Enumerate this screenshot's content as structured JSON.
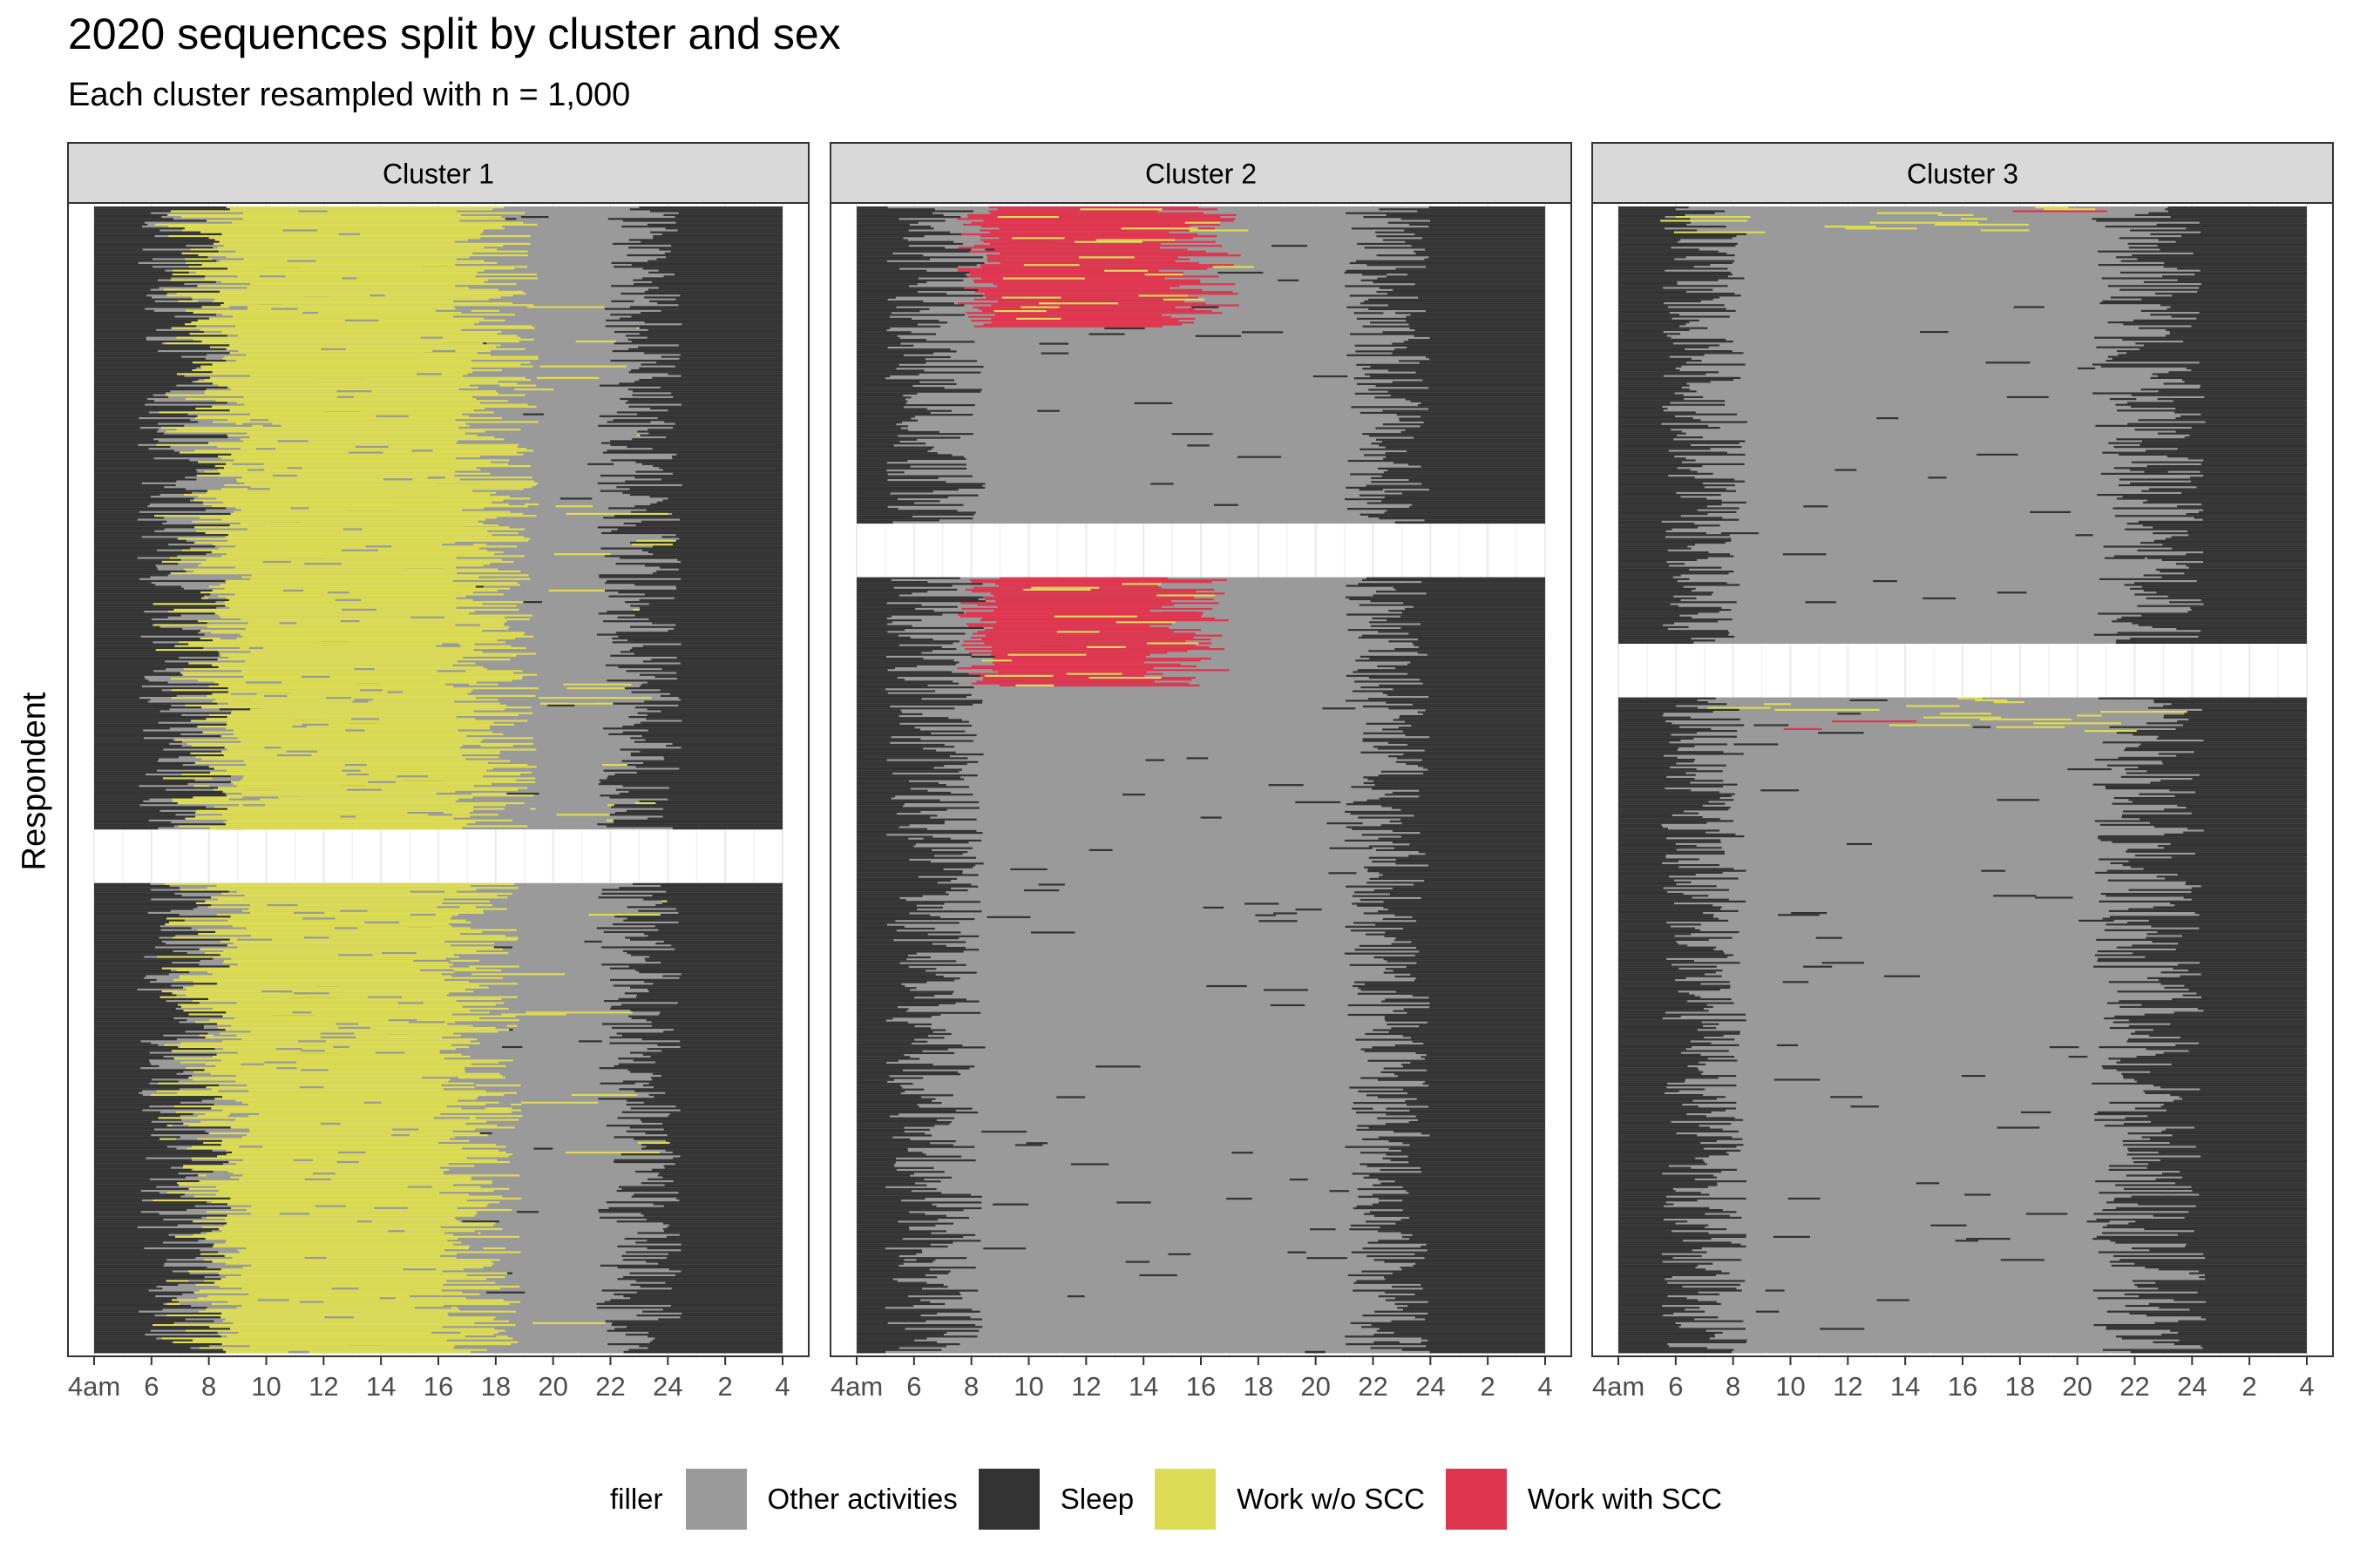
{
  "title": "2020 sequences split by cluster and sex",
  "subtitle": "Each cluster resampled with n = 1,000",
  "ylabel": "Respondent",
  "colors": {
    "other": "#9a9a9a",
    "sleep": "#333333",
    "work_wo_scc": "#dcdc55",
    "work_with_scc": "#e0354f",
    "strip_bg": "#d9d9d9",
    "grid": "#ebebeb",
    "panel_border": "#333333"
  },
  "legend": {
    "title": "filler",
    "items": [
      {
        "key": "other",
        "label": "Other activities"
      },
      {
        "key": "sleep",
        "label": "Sleep"
      },
      {
        "key": "work_wo_scc",
        "label": "Work w/o SCC"
      },
      {
        "key": "work_with_scc",
        "label": "Work with SCC"
      }
    ]
  },
  "chart_data": {
    "type": "sequence_index_plot",
    "x_ticks": [
      "4am",
      "6",
      "8",
      "10",
      "12",
      "14",
      "16",
      "18",
      "20",
      "22",
      "24",
      "2",
      "4"
    ],
    "x_range_hours": [
      4,
      28
    ],
    "panels": [
      {
        "label": "Cluster 1",
        "groups": [
          {
            "share": 0.57,
            "sleep_end": [
              5.5,
              8.8
            ],
            "sleep_start": [
              21.5,
              24.5
            ],
            "work_start": [
              5.8,
              9.5
            ],
            "work_end": [
              16.5,
              19.5
            ],
            "work_color": "work_wo_scc",
            "evening_work_share": 0.06,
            "scc_top_share": 0.0
          },
          {
            "share": 0.43,
            "sleep_end": [
              5.5,
              8.8
            ],
            "sleep_start": [
              21.5,
              24.5
            ],
            "work_start": [
              5.8,
              9.5
            ],
            "work_end": [
              16.0,
              19.0
            ],
            "work_color": "work_wo_scc",
            "evening_work_share": 0.05,
            "scc_top_share": 0.0
          }
        ]
      },
      {
        "label": "Cluster 2",
        "groups": [
          {
            "share": 0.29,
            "sleep_end": [
              5.0,
              8.5
            ],
            "sleep_start": [
              21.0,
              24.0
            ],
            "work_start": null,
            "work_end": null,
            "work_color": "work_with_scc",
            "scc_top_share": 0.38,
            "scc_range": [
              7.5,
              17.5
            ]
          },
          {
            "share": 0.71,
            "sleep_end": [
              5.0,
              8.5
            ],
            "sleep_start": [
              21.0,
              24.0
            ],
            "work_start": null,
            "work_end": null,
            "work_color": "work_with_scc",
            "scc_top_share": 0.14,
            "scc_range": [
              7.5,
              17.0
            ]
          }
        ]
      },
      {
        "label": "Cluster 3",
        "groups": [
          {
            "share": 0.4,
            "sleep_end": [
              5.5,
              8.5
            ],
            "sleep_start": [
              20.5,
              24.5
            ],
            "work_start": null,
            "work_end": null,
            "work_color": "work_wo_scc",
            "scc_top_share": 0.06,
            "scc_range": [
              4.5,
              20.0
            ]
          },
          {
            "share": 0.6,
            "sleep_end": [
              5.5,
              8.5
            ],
            "sleep_start": [
              20.5,
              24.5
            ],
            "work_start": null,
            "work_end": null,
            "work_color": "work_wo_scc",
            "scc_top_share": 0.05,
            "scc_range": [
              6.0,
              22.0
            ]
          }
        ]
      }
    ]
  }
}
